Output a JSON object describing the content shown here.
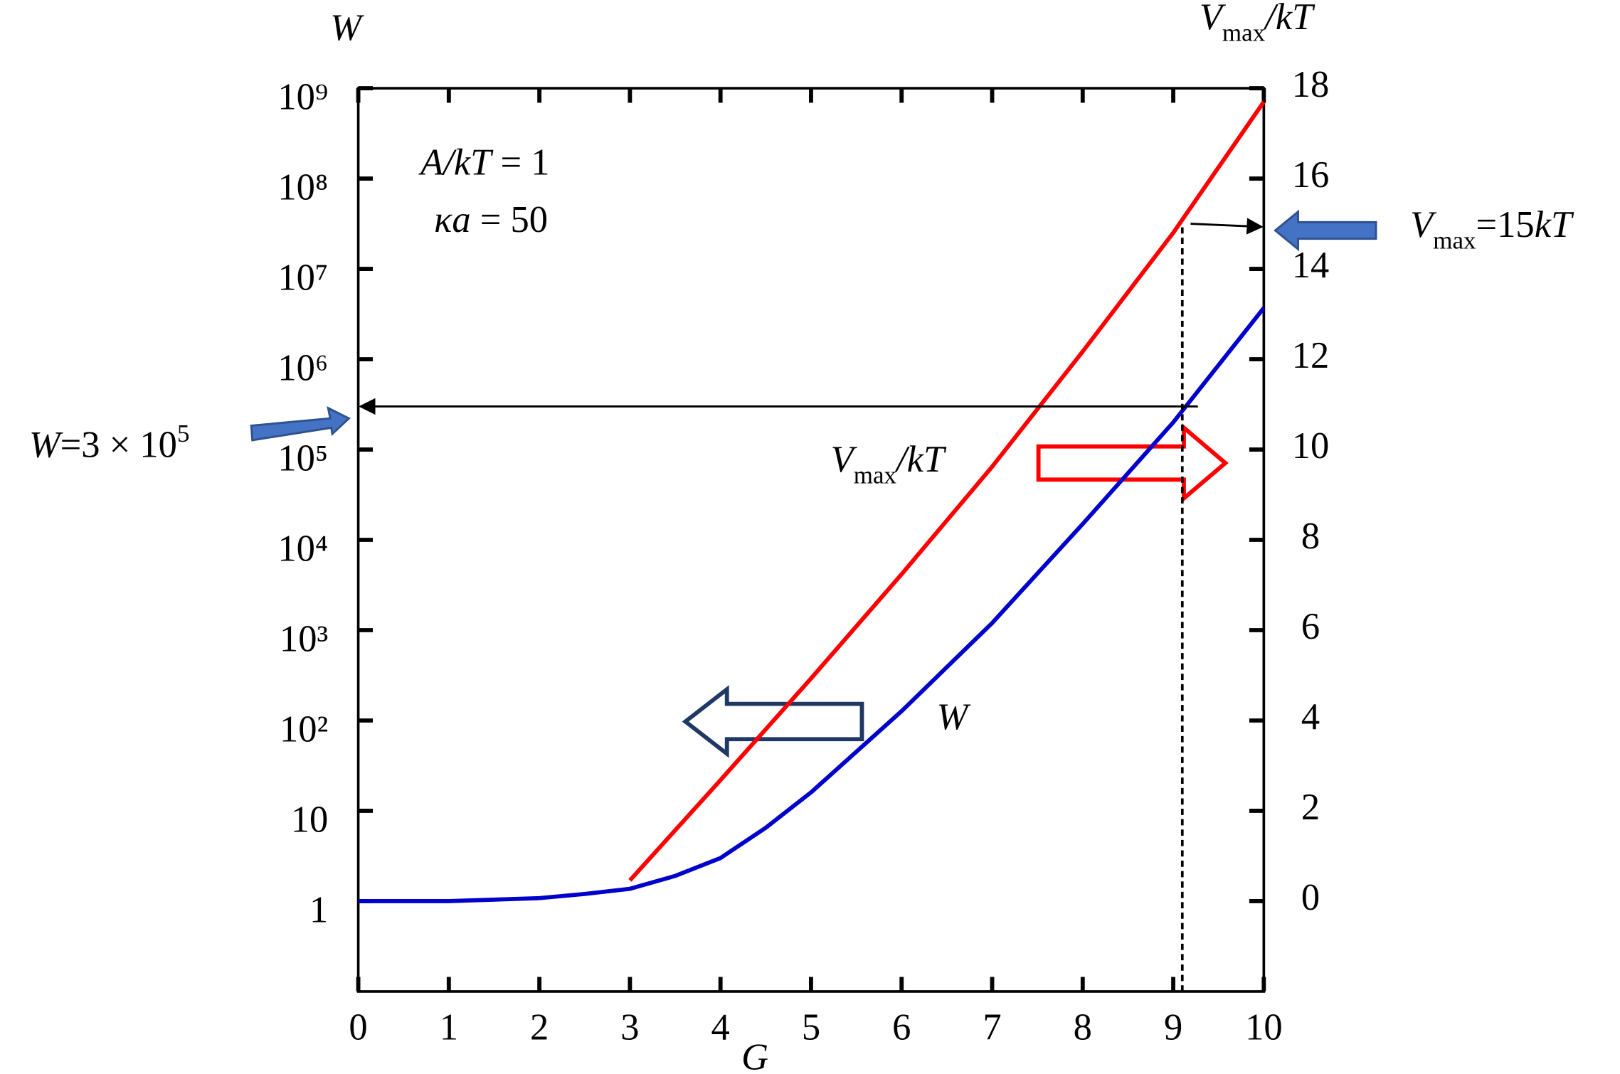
{
  "chart_data": {
    "type": "line",
    "xlim": [
      0,
      10
    ],
    "xticks": [
      0,
      1,
      2,
      3,
      4,
      5,
      6,
      7,
      8,
      9,
      10
    ],
    "ylim": [
      0.1,
      1000000000
    ],
    "yscale": "log",
    "yticks": [
      {
        "value": 1,
        "label": "1"
      },
      {
        "value": 10,
        "label": "10"
      },
      {
        "value": 100,
        "label": "10²"
      },
      {
        "value": 1000,
        "label": "10³"
      },
      {
        "value": 10000,
        "label": "10⁴"
      },
      {
        "value": 100000,
        "label": "10⁵"
      },
      {
        "value": 1000000,
        "label": "10⁶"
      },
      {
        "value": 10000000,
        "label": "10⁷"
      },
      {
        "value": 100000000,
        "label": "10⁸"
      },
      {
        "value": 1000000000,
        "label": "10⁹"
      }
    ],
    "y2lim": [
      -2,
      18
    ],
    "y2ticks": [
      0,
      2,
      4,
      6,
      8,
      10,
      12,
      14,
      16,
      18
    ],
    "series": [
      {
        "color": "#0000cc",
        "axis": "y",
        "x": [
          0,
          1,
          2,
          2.5,
          3,
          3.5,
          4,
          4.5,
          5,
          6,
          7,
          8,
          9,
          10
        ],
        "values": [
          1,
          1,
          1.08,
          1.2,
          1.37,
          1.9,
          3.0,
          6.5,
          16,
          127,
          1200,
          15000,
          200000,
          3700000
        ]
      },
      {
        "color": "#ff0000",
        "axis": "y2",
        "x": [
          3,
          4,
          5,
          6,
          7,
          8,
          9,
          10
        ],
        "values": [
          0.46,
          2.68,
          4.93,
          7.24,
          9.62,
          12.17,
          14.8,
          17.7
        ]
      }
    ],
    "guides": {
      "x": 9.1,
      "w": 300000,
      "v": 15
    },
    "annotations": [
      {
        "id": "ylabel",
        "parts": [
          {
            "text": "W",
            "italic": true
          }
        ]
      },
      {
        "id": "y2label",
        "parts": [
          {
            "text": "V",
            "italic": true
          },
          {
            "text": "max",
            "sub": true
          },
          {
            "text": "/kT",
            "italic": true
          }
        ]
      },
      {
        "id": "xlabel",
        "parts": [
          {
            "text": "G",
            "italic": true
          }
        ]
      },
      {
        "id": "akt",
        "parts": [
          {
            "text": "A/kT",
            "italic": true
          },
          {
            "text": " = 1"
          }
        ]
      },
      {
        "id": "ka",
        "parts": [
          {
            "text": "κa",
            "italic": true
          },
          {
            "text": " = 50"
          }
        ]
      },
      {
        "id": "vlabel",
        "parts": [
          {
            "text": "V",
            "italic": true
          },
          {
            "text": "max",
            "sub": true
          },
          {
            "text": "/kT",
            "italic": true
          }
        ]
      },
      {
        "id": "wlabel",
        "parts": [
          {
            "text": "W",
            "italic": true
          }
        ]
      },
      {
        "id": "wnote",
        "parts": [
          {
            "text": "W",
            "italic": true
          },
          {
            "text": "=3 × 10"
          },
          {
            "text": "5",
            "sup": true
          }
        ]
      },
      {
        "id": "vnote",
        "parts": [
          {
            "text": "V",
            "italic": true
          },
          {
            "text": "max",
            "sub": true
          },
          {
            "text": "=15"
          },
          {
            "text": "kT",
            "italic": true
          }
        ]
      }
    ]
  }
}
